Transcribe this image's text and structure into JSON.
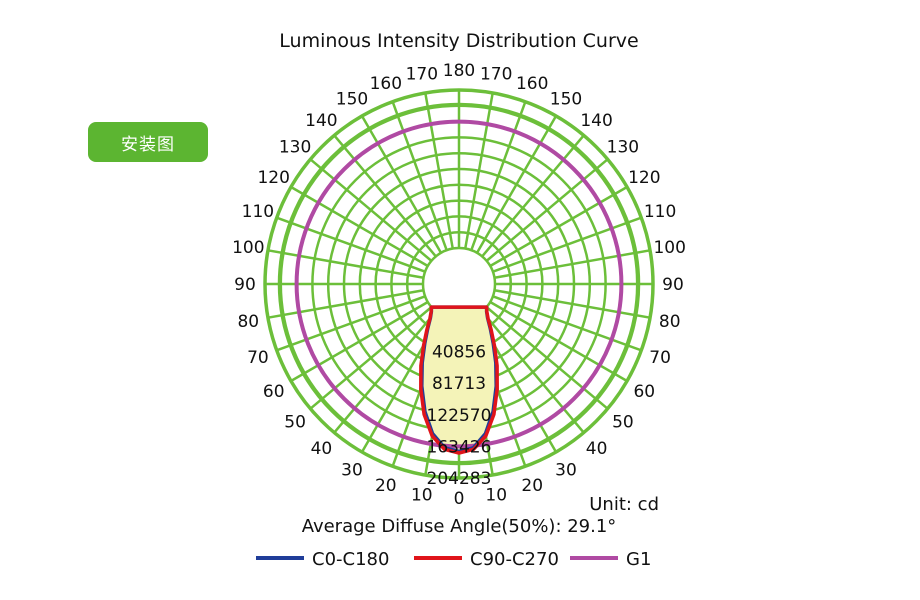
{
  "tag_button": {
    "label": "安装图",
    "color": "#5cb531"
  },
  "chart_data": {
    "type": "polar",
    "title": "Luminous Intensity Distribution Curve",
    "unit_label": "Unit: cd",
    "average_angle_label": "Average Diffuse Angle(50%): 29.1°",
    "radial_max": 204283,
    "radial_ticks": [
      "40856",
      "81713",
      "122570",
      "163426",
      "204283"
    ],
    "radial_tick_values": [
      40856,
      81713,
      122570,
      163426,
      204283
    ],
    "angle_ticks_left": [
      "0",
      "10",
      "20",
      "30",
      "40",
      "50",
      "60",
      "70",
      "80",
      "90",
      "100",
      "110",
      "120",
      "130",
      "140",
      "150",
      "160",
      "170",
      "180"
    ],
    "angle_ticks_right": [
      "10",
      "20",
      "30",
      "40",
      "50",
      "60",
      "70",
      "80",
      "90",
      "100",
      "110",
      "120",
      "130",
      "140",
      "150",
      "160",
      "170"
    ],
    "grid": true,
    "grid_color": "#6cbf3a",
    "fill_color": "#f4f3b8",
    "series": [
      {
        "name": "C0-C180",
        "color": "#1f3d99",
        "angles": [
          0,
          5,
          10,
          15,
          20,
          25,
          30,
          35,
          40,
          45,
          50
        ],
        "values": [
          170000,
          166000,
          150000,
          124000,
          94000,
          66000,
          42000,
          24000,
          11000,
          4000,
          0
        ]
      },
      {
        "name": "C90-C270",
        "color": "#e0141a",
        "angles": [
          0,
          5,
          10,
          15,
          20,
          25,
          30,
          35,
          40,
          45,
          50
        ],
        "values": [
          172000,
          168000,
          153000,
          128000,
          98000,
          70000,
          45000,
          26000,
          12000,
          4500,
          0
        ]
      },
      {
        "name": "G1",
        "color": "#b04aa3",
        "constant_value": 163426
      }
    ],
    "legend_position": "bottom"
  }
}
